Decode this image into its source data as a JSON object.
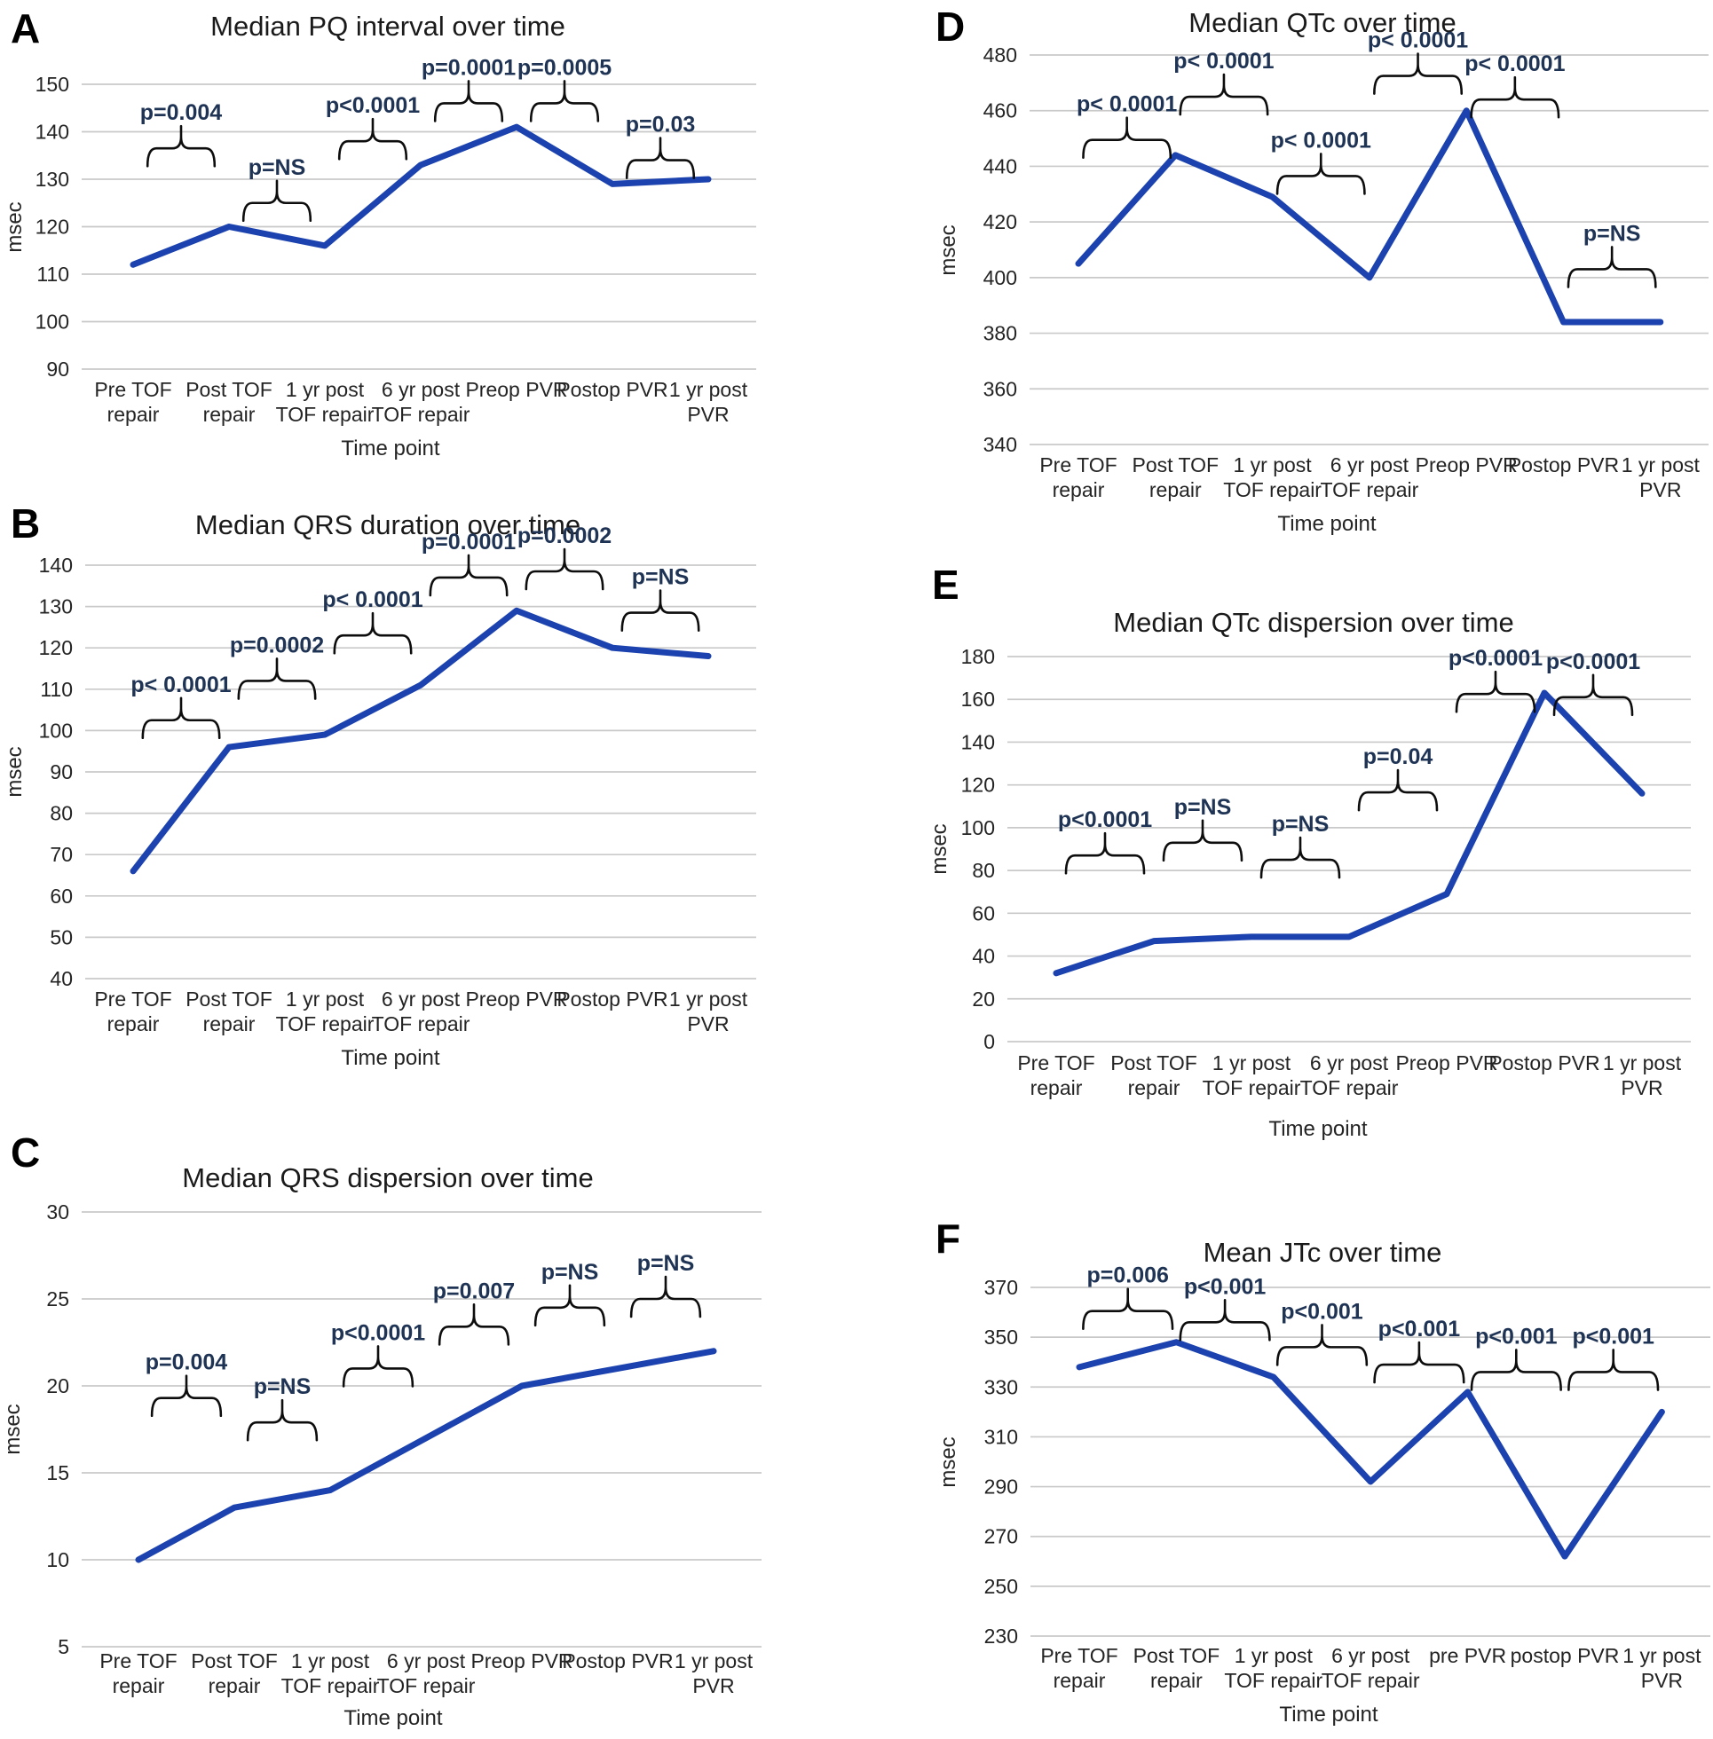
{
  "style": {
    "background": "#ffffff",
    "line_color": "#1b42ae",
    "grid_color": "#c9c9c9",
    "brace_color": "#0d0d0d",
    "pvalue_color": "#1f3455",
    "title_color": "#1a1a1a",
    "text_color": "#242424",
    "letter_color": "#000000"
  },
  "chart_data": [
    {
      "panel": "A",
      "type": "line",
      "title": "Median PQ interval over time",
      "xlabel": "Time point",
      "ylabel": "msec",
      "ylim": [
        90,
        150
      ],
      "ytick_step": 10,
      "grid": true,
      "legend": false,
      "categories": [
        "Pre TOF repair",
        "Post TOF repair",
        "1 yr post TOF repair",
        "6 yr post TOF repair",
        "Preop PVR",
        "Postop PVR",
        "1 yr post PVR"
      ],
      "category_lines": [
        [
          "Pre TOF",
          "repair"
        ],
        [
          "Post TOF",
          "repair"
        ],
        [
          "1 yr post",
          "TOF repair"
        ],
        [
          "6 yr post",
          "TOF repair"
        ],
        [
          "Preop PVR"
        ],
        [
          "Postop PVR"
        ],
        [
          "1 yr post",
          "PVR"
        ]
      ],
      "values": [
        112,
        120,
        116,
        133,
        141,
        129,
        130
      ],
      "pvalues": [
        {
          "between": [
            0,
            1
          ],
          "label": "p=0.004",
          "brace_y": 136.5
        },
        {
          "between": [
            1,
            2
          ],
          "label": "p=NS",
          "brace_y": 125
        },
        {
          "between": [
            2,
            3
          ],
          "label": "p<0.0001",
          "brace_y": 138
        },
        {
          "between": [
            3,
            4
          ],
          "label": "p=0.0001",
          "brace_y": 146
        },
        {
          "between": [
            4,
            5
          ],
          "label": "p=0.0005",
          "brace_y": 146
        },
        {
          "between": [
            5,
            6
          ],
          "label": "p=0.03",
          "brace_y": 134
        }
      ]
    },
    {
      "panel": "B",
      "type": "line",
      "title": "Median QRS duration over time",
      "xlabel": "Time point",
      "ylabel": "msec",
      "ylim": [
        40,
        140
      ],
      "ytick_step": 10,
      "grid": true,
      "legend": false,
      "categories": [
        "Pre TOF repair",
        "Post TOF repair",
        "1 yr post TOF repair",
        "6 yr post TOF repair",
        "Preop PVR",
        "Postop PVR",
        "1 yr post PVR"
      ],
      "category_lines": [
        [
          "Pre TOF",
          "repair"
        ],
        [
          "Post TOF",
          "repair"
        ],
        [
          "1 yr post",
          "TOF repair"
        ],
        [
          "6 yr post",
          "TOF repair"
        ],
        [
          "Preop PVR"
        ],
        [
          "Postop PVR"
        ],
        [
          "1 yr post",
          "PVR"
        ]
      ],
      "values": [
        66,
        96,
        99,
        111,
        129,
        120,
        118
      ],
      "pvalues": [
        {
          "between": [
            0,
            1
          ],
          "label": "p< 0.0001",
          "brace_y": 102.5
        },
        {
          "between": [
            1,
            2
          ],
          "label": "p=0.0002",
          "brace_y": 112
        },
        {
          "between": [
            2,
            3
          ],
          "label": "p< 0.0001",
          "brace_y": 123
        },
        {
          "between": [
            3,
            4
          ],
          "label": "p=0.0001",
          "brace_y": 137
        },
        {
          "between": [
            4,
            5
          ],
          "label": "p=0.0002",
          "brace_y": 138.5
        },
        {
          "between": [
            5,
            6
          ],
          "label": "p=NS",
          "brace_y": 128.5
        }
      ]
    },
    {
      "panel": "C",
      "type": "line",
      "title": "Median QRS dispersion over time",
      "xlabel": "Time point",
      "ylabel": "msec",
      "ylim": [
        5,
        30
      ],
      "ytick_step": 5,
      "grid": true,
      "legend": false,
      "categories": [
        "Pre TOF repair",
        "Post TOF repair",
        "1 yr post TOF repair",
        "6 yr post TOF repair",
        "Preop PVR",
        "Postop PVR",
        "1 yr post PVR"
      ],
      "category_lines": [
        [
          "Pre TOF",
          "repair"
        ],
        [
          "Post TOF",
          "repair"
        ],
        [
          "1 yr post",
          "TOF repair"
        ],
        [
          "6 yr post",
          "TOF repair"
        ],
        [
          "Preop PVR"
        ],
        [
          "Postop PVR"
        ],
        [
          "1 yr post",
          "PVR"
        ]
      ],
      "values": [
        10,
        13,
        14,
        17,
        20,
        21,
        22
      ],
      "pvalues": [
        {
          "between": [
            0,
            1
          ],
          "label": "p=0.004",
          "brace_y": 19.3
        },
        {
          "between": [
            1,
            2
          ],
          "label": "p=NS",
          "brace_y": 17.9
        },
        {
          "between": [
            2,
            3
          ],
          "label": "p<0.0001",
          "brace_y": 21
        },
        {
          "between": [
            3,
            4
          ],
          "label": "p=0.007",
          "brace_y": 23.4
        },
        {
          "between": [
            4,
            5
          ],
          "label": "p=NS",
          "brace_y": 24.5
        },
        {
          "between": [
            5,
            6
          ],
          "label": "p=NS",
          "brace_y": 25
        }
      ]
    },
    {
      "panel": "D",
      "type": "line",
      "title": "Median QTc over time",
      "xlabel": "Time point",
      "ylabel": "msec",
      "ylim": [
        340,
        480
      ],
      "ytick_step": 20,
      "grid": true,
      "legend": false,
      "categories": [
        "Pre TOF repair",
        "Post TOF repair",
        "1 yr post TOF repair",
        "6 yr post TOF repair",
        "Preop PVR",
        "Postop PVR",
        "1 yr post PVR"
      ],
      "category_lines": [
        [
          "Pre TOF",
          "repair"
        ],
        [
          "Post TOF",
          "repair"
        ],
        [
          "1 yr post",
          "TOF repair"
        ],
        [
          "6 yr post",
          "TOF repair"
        ],
        [
          "Preop PVR"
        ],
        [
          "Postop PVR"
        ],
        [
          "1 yr post",
          "PVR"
        ]
      ],
      "values": [
        405,
        444,
        429,
        400,
        460,
        384,
        384
      ],
      "pvalues": [
        {
          "between": [
            0,
            1
          ],
          "label": "p< 0.0001",
          "brace_y": 449.5
        },
        {
          "between": [
            1,
            2
          ],
          "label": "p< 0.0001",
          "brace_y": 465
        },
        {
          "between": [
            2,
            3
          ],
          "label": "p< 0.0001",
          "brace_y": 436.5
        },
        {
          "between": [
            3,
            4
          ],
          "label": "p< 0.0001",
          "brace_y": 472.5
        },
        {
          "between": [
            4,
            5
          ],
          "label": "p< 0.0001",
          "brace_y": 464
        },
        {
          "between": [
            5,
            6
          ],
          "label": "p=NS",
          "brace_y": 403
        }
      ]
    },
    {
      "panel": "E",
      "type": "line",
      "title": "Median QTc dispersion over time",
      "xlabel": "Time point",
      "ylabel": "msec",
      "ylim": [
        0,
        180
      ],
      "ytick_step": 20,
      "grid": true,
      "legend": false,
      "categories": [
        "Pre TOF repair",
        "Post TOF repair",
        "1 yr post TOF repair",
        "6 yr post TOF repair",
        "Preop PVR",
        "Postop PVR",
        "1 yr post PVR"
      ],
      "category_lines": [
        [
          "Pre TOF",
          "repair"
        ],
        [
          "Post TOF",
          "repair"
        ],
        [
          "1 yr post",
          "TOF repair"
        ],
        [
          "6 yr post",
          "TOF repair"
        ],
        [
          "Preop PVR"
        ],
        [
          "Postop PVR"
        ],
        [
          "1 yr post",
          "PVR"
        ]
      ],
      "values": [
        32,
        47,
        49,
        49,
        69,
        163,
        116
      ],
      "pvalues": [
        {
          "between": [
            0,
            1
          ],
          "label": "p<0.0001",
          "brace_y": 87
        },
        {
          "between": [
            1,
            2
          ],
          "label": "p=NS",
          "brace_y": 93
        },
        {
          "between": [
            2,
            3
          ],
          "label": "p=NS",
          "brace_y": 85
        },
        {
          "between": [
            3,
            4
          ],
          "label": "p=0.04",
          "brace_y": 116.5
        },
        {
          "between": [
            4,
            5
          ],
          "label": "p<0.0001",
          "brace_y": 162.5
        },
        {
          "between": [
            5,
            6
          ],
          "label": "p<0.0001",
          "brace_y": 161
        }
      ]
    },
    {
      "panel": "F",
      "type": "line",
      "title": "Mean JTc over time",
      "xlabel": "Time point",
      "ylabel": "msec",
      "ylim": [
        230,
        370
      ],
      "ytick_step": 20,
      "grid": true,
      "legend": false,
      "categories": [
        "Pre TOF repair",
        "Post TOF repair",
        "1 yr post TOF repair",
        "6 yr post TOF repair",
        "pre PVR",
        "postop PVR",
        "1 yr post PVR"
      ],
      "category_lines": [
        [
          "Pre TOF",
          "repair"
        ],
        [
          "Post TOF",
          "repair"
        ],
        [
          "1 yr post",
          "TOF repair"
        ],
        [
          "6 yr post",
          "TOF repair"
        ],
        [
          "pre PVR"
        ],
        [
          "postop PVR"
        ],
        [
          "1 yr post",
          "PVR"
        ]
      ],
      "values": [
        338,
        348,
        334,
        292,
        328,
        262,
        320
      ],
      "pvalues": [
        {
          "between": [
            0,
            1
          ],
          "label": "p=0.006",
          "brace_y": 360.5
        },
        {
          "between": [
            1,
            2
          ],
          "label": "p<0.001",
          "brace_y": 356
        },
        {
          "between": [
            2,
            3
          ],
          "label": "p<0.001",
          "brace_y": 346
        },
        {
          "between": [
            3,
            4
          ],
          "label": "p<0.001",
          "brace_y": 339
        },
        {
          "between": [
            4,
            5
          ],
          "label": "p<0.001",
          "brace_y": 336
        },
        {
          "between": [
            5,
            6
          ],
          "label": "p<0.001",
          "brace_y": 336
        }
      ]
    }
  ]
}
